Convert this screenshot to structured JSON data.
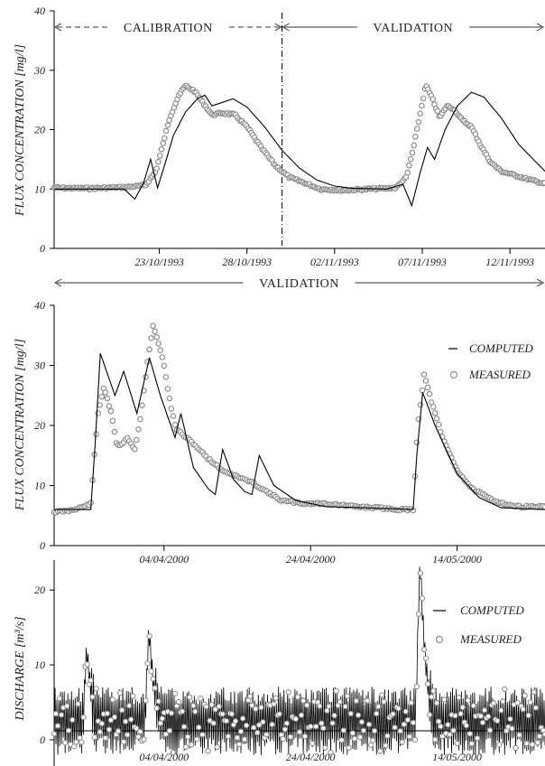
{
  "chart_data": [
    {
      "type": "line",
      "panel": "top",
      "ylabel": "FLUX CONCENTRATION  [mg/l]",
      "ylim": [
        0,
        40
      ],
      "yticks": [
        0,
        10,
        20,
        30,
        40
      ],
      "xlim": [
        "1993-10-17",
        "1993-11-14"
      ],
      "xtick_labels": [
        {
          "date": "1993-10-23",
          "label": "23/10/1993"
        },
        {
          "date": "1993-10-28",
          "label": "28/10/1993"
        },
        {
          "date": "1993-11-02",
          "label": "02/11/1993"
        },
        {
          "date": "1993-11-07",
          "label": "07/11/1993"
        },
        {
          "date": "1993-11-12",
          "label": "12/11/1993"
        }
      ],
      "periods": [
        {
          "label": "CALIBRATION",
          "start": "1993-10-17",
          "end": "1993-10-30",
          "style": "dashed"
        },
        {
          "label": "VALIDATION",
          "start": "1993-10-30",
          "end": "1993-11-14",
          "style": "solid"
        }
      ],
      "split_date": "1993-10-30",
      "series": [
        {
          "name": "COMPUTED",
          "style": "line",
          "points": [
            [
              "1993-10-17",
              10.0
            ],
            [
              "1993-10-19",
              10.0
            ],
            [
              "1993-10-21",
              10.0
            ],
            [
              "1993-10-21.6",
              8.3
            ],
            [
              "1993-10-22.1",
              11.0
            ],
            [
              "1993-10-22.5",
              15.0
            ],
            [
              "1993-10-22.9",
              10.2
            ],
            [
              "1993-10-23.3",
              14.0
            ],
            [
              "1993-10-23.8",
              19.0
            ],
            [
              "1993-10-24.5",
              23.0
            ],
            [
              "1993-10-25.2",
              25.3
            ],
            [
              "1993-10-25.6",
              25.8
            ],
            [
              "1993-10-26.0",
              24.0
            ],
            [
              "1993-10-26.6",
              24.6
            ],
            [
              "1993-10-27.2",
              25.2
            ],
            [
              "1993-10-28.0",
              23.8
            ],
            [
              "1993-10-29.0",
              20.5
            ],
            [
              "1993-10-30.0",
              16.5
            ],
            [
              "1993-10-31.0",
              13.5
            ],
            [
              "1993-11-01.0",
              11.5
            ],
            [
              "1993-11-02.0",
              10.5
            ],
            [
              "1993-11-03.0",
              10.1
            ],
            [
              "1993-11-05.0",
              10.0
            ],
            [
              "1993-11-05.9",
              10.8
            ],
            [
              "1993-11-06.4",
              7.2
            ],
            [
              "1993-11-06.9",
              13.0
            ],
            [
              "1993-11-07.3",
              17.0
            ],
            [
              "1993-11-07.7",
              15.0
            ],
            [
              "1993-11-08.3",
              20.0
            ],
            [
              "1993-11-09.0",
              24.0
            ],
            [
              "1993-11-09.8",
              26.3
            ],
            [
              "1993-11-10.5",
              25.5
            ],
            [
              "1993-11-11.5",
              22.0
            ],
            [
              "1993-11-12.5",
              17.5
            ],
            [
              "1993-11-13.5",
              14.5
            ],
            [
              "1993-11-14.0",
              13.0
            ]
          ]
        },
        {
          "name": "MEASURED",
          "style": "markers",
          "points": [
            [
              "1993-10-17",
              10.2
            ],
            [
              "1993-10-19",
              10.1
            ],
            [
              "1993-10-21",
              10.3
            ],
            [
              "1993-10-22.2",
              10.6
            ],
            [
              "1993-10-22.8",
              13.0
            ],
            [
              "1993-10-23.2",
              17.5
            ],
            [
              "1993-10-23.6",
              22.0
            ],
            [
              "1993-10-24.1",
              25.8
            ],
            [
              "1993-10-24.5",
              27.4
            ],
            [
              "1993-10-25.0",
              26.5
            ],
            [
              "1993-10-25.5",
              24.5
            ],
            [
              "1993-10-26.0",
              22.5
            ],
            [
              "1993-10-26.6",
              22.8
            ],
            [
              "1993-10-27.3",
              22.5
            ],
            [
              "1993-10-28.0",
              20.5
            ],
            [
              "1993-10-28.8",
              17.0
            ],
            [
              "1993-10-29.6",
              14.0
            ],
            [
              "1993-10-30.4",
              12.0
            ],
            [
              "1993-10-31.3",
              11.0
            ],
            [
              "1993-11-01.2",
              10.0
            ],
            [
              "1993-11-02.5",
              9.8
            ],
            [
              "1993-11-04.0",
              10.0
            ],
            [
              "1993-11-05.5",
              10.2
            ],
            [
              "1993-11-06.1",
              12.0
            ],
            [
              "1993-11-06.5",
              17.0
            ],
            [
              "1993-11-06.9",
              23.0
            ],
            [
              "1993-11-07.2",
              27.5
            ],
            [
              "1993-11-07.6",
              25.0
            ],
            [
              "1993-11-08.0",
              22.0
            ],
            [
              "1993-11-08.4",
              24.0
            ],
            [
              "1993-11-08.8",
              23.5
            ],
            [
              "1993-11-09.3",
              21.5
            ],
            [
              "1993-11-09.8",
              20.5
            ],
            [
              "1993-11-10.3",
              17.5
            ],
            [
              "1993-11-10.9",
              14.5
            ],
            [
              "1993-11-11.5",
              13.0
            ],
            [
              "1993-11-12.3",
              12.3
            ],
            [
              "1993-11-13.2",
              11.5
            ],
            [
              "1993-11-14.0",
              10.9
            ]
          ]
        }
      ]
    },
    {
      "type": "line",
      "panel": "middle",
      "ylabel": "FLUX CONCENTRATION  [mg/l]",
      "ylim": [
        0,
        40
      ],
      "yticks": [
        0,
        10,
        20,
        30,
        40
      ],
      "xlim": [
        "2000-03-20",
        "2000-05-26"
      ],
      "xtick_labels": [
        {
          "date": "2000-04-04",
          "label": "04/04/2000"
        },
        {
          "date": "2000-04-24",
          "label": "24/04/2000"
        },
        {
          "date": "2000-05-14",
          "label": "14/05/2000"
        }
      ],
      "periods": [
        {
          "label": "VALIDATION",
          "start": "2000-03-20",
          "end": "2000-05-26",
          "style": "solid"
        }
      ],
      "legend": {
        "position": "right",
        "entries": [
          "COMPUTED",
          "MEASURED"
        ]
      },
      "series": [
        {
          "name": "COMPUTED",
          "style": "line",
          "points": [
            [
              "2000-03-20",
              6.0
            ],
            [
              "2000-03-25",
              6.0
            ],
            [
              "2000-03-25.6",
              17.0
            ],
            [
              "2000-03-26.3",
              32.0
            ],
            [
              "2000-03-28.3",
              25.0
            ],
            [
              "2000-03-29.5",
              29.0
            ],
            [
              "2000-03-31.3",
              22.0
            ],
            [
              "2000-04-02.0",
              31.3
            ],
            [
              "2000-04-03.5",
              25.0
            ],
            [
              "2000-04-05.5",
              18.0
            ],
            [
              "2000-04-06.3",
              22.0
            ],
            [
              "2000-04-08.0",
              13.0
            ],
            [
              "2000-04-10.0",
              9.5
            ],
            [
              "2000-04-11.0",
              8.5
            ],
            [
              "2000-04-12.0",
              16.0
            ],
            [
              "2000-04-13.5",
              11.0
            ],
            [
              "2000-04-15.0",
              9.0
            ],
            [
              "2000-04-16.0",
              8.5
            ],
            [
              "2000-04-17.0",
              15.0
            ],
            [
              "2000-04-19.0",
              10.0
            ],
            [
              "2000-04-22.0",
              7.5
            ],
            [
              "2000-04-26.0",
              6.5
            ],
            [
              "2000-05-01.0",
              6.3
            ],
            [
              "2000-05-08.0",
              6.0
            ],
            [
              "2000-05-08.5",
              15.0
            ],
            [
              "2000-05-09.3",
              25.5
            ],
            [
              "2000-05-11.0",
              20.0
            ],
            [
              "2000-05-14.0",
              12.0
            ],
            [
              "2000-05-17.0",
              8.0
            ],
            [
              "2000-05-20.0",
              6.3
            ],
            [
              "2000-05-26.0",
              6.0
            ]
          ]
        },
        {
          "name": "MEASURED",
          "style": "markers",
          "points": [
            [
              "2000-03-20",
              5.6
            ],
            [
              "2000-03-22",
              5.8
            ],
            [
              "2000-03-24",
              6.5
            ],
            [
              "2000-03-25.0",
              7.0
            ],
            [
              "2000-03-25.5",
              15.0
            ],
            [
              "2000-03-26.0",
              22.0
            ],
            [
              "2000-03-26.8",
              26.5
            ],
            [
              "2000-03-27.8",
              22.0
            ],
            [
              "2000-03-28.6",
              16.5
            ],
            [
              "2000-03-29.3",
              17.0
            ],
            [
              "2000-03-30.0",
              18.0
            ],
            [
              "2000-03-31.0",
              16.0
            ],
            [
              "2000-03-31.8",
              21.5
            ],
            [
              "2000-04-01.8",
              31.0
            ],
            [
              "2000-04-02.5",
              36.5
            ],
            [
              "2000-04-03.2",
              34.0
            ],
            [
              "2000-04-04.0",
              30.0
            ],
            [
              "2000-04-04.8",
              24.0
            ],
            [
              "2000-04-05.6",
              19.5
            ],
            [
              "2000-04-06.5",
              18.5
            ],
            [
              "2000-04-08.0",
              17.0
            ],
            [
              "2000-04-10.0",
              14.5
            ],
            [
              "2000-04-12.0",
              12.5
            ],
            [
              "2000-04-14.0",
              11.5
            ],
            [
              "2000-04-16.0",
              10.5
            ],
            [
              "2000-04-18.0",
              9.0
            ],
            [
              "2000-04-20.0",
              7.5
            ],
            [
              "2000-04-23.0",
              7.0
            ],
            [
              "2000-04-26.0",
              7.0
            ],
            [
              "2000-04-30.0",
              6.5
            ],
            [
              "2000-05-03.0",
              6.3
            ],
            [
              "2000-05-06.0",
              6.0
            ],
            [
              "2000-05-08.0",
              6.0
            ],
            [
              "2000-05-08.6",
              19.5
            ],
            [
              "2000-05-09.5",
              28.5
            ],
            [
              "2000-05-10.5",
              24.0
            ],
            [
              "2000-05-12.0",
              18.0
            ],
            [
              "2000-05-14.0",
              12.5
            ],
            [
              "2000-05-16.0",
              9.5
            ],
            [
              "2000-05-19.0",
              7.5
            ],
            [
              "2000-05-22.0",
              6.5
            ],
            [
              "2000-05-26.0",
              6.5
            ]
          ]
        }
      ]
    },
    {
      "type": "line",
      "panel": "bottom",
      "ylabel": "DISCHARGE  [m³/s]",
      "ylim": [
        -3.5,
        24
      ],
      "yticks": [
        0,
        10,
        20
      ],
      "xlim": [
        "2000-03-20",
        "2000-05-26"
      ],
      "xtick_labels": [
        {
          "date": "2000-04-04",
          "label": "04/04/2000"
        },
        {
          "date": "2000-04-24",
          "label": "24/04/2000"
        },
        {
          "date": "2000-05-14",
          "label": "14/05/2000"
        }
      ],
      "legend": {
        "position": "right",
        "entries": [
          "COMPUTED",
          "MEASURED"
        ]
      },
      "series": [
        {
          "name": "COMPUTED",
          "style": "line",
          "peaks": [
            [
              "2000-03-24.5",
              11.5
            ],
            [
              "2000-04-02.0",
              14.0
            ],
            [
              "2000-05-09.0",
              23.0
            ]
          ]
        },
        {
          "name": "MEASURED",
          "style": "markers",
          "peaks": [
            [
              "2000-03-24.5",
              11.2
            ],
            [
              "2000-04-02.0",
              13.8
            ],
            [
              "2000-05-09.0",
              22.5
            ]
          ]
        }
      ]
    }
  ]
}
